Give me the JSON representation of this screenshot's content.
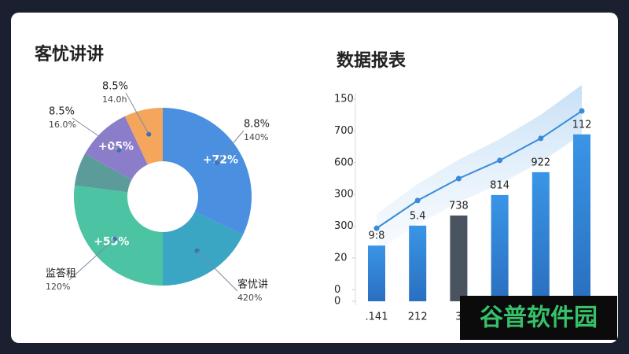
{
  "chart_data": [
    {
      "type": "pie",
      "title": "客忧讲讲",
      "donut": true,
      "values": [
        32,
        18,
        27,
        6,
        10,
        7
      ],
      "colors": [
        "#4a8fe0",
        "#3aa6c4",
        "#4cc3a2",
        "#5b9c9a",
        "#8b7dca",
        "#f4a65c"
      ],
      "inner_labels": [
        "+72%",
        null,
        "+55%",
        null,
        "+05%",
        null
      ],
      "outer_labels": [
        [
          "8.8%",
          "140%"
        ],
        [
          "客忧讲",
          "420%"
        ],
        [
          "监答租",
          "120%"
        ],
        null,
        [
          "8.5%",
          "16.0%"
        ],
        [
          "8.5%",
          "14.0h"
        ]
      ]
    },
    {
      "type": "bar_line",
      "title": "数据报表",
      "categories": [
        ".141",
        "212",
        "3",
        null,
        null,
        null
      ],
      "ylim": [
        0,
        700
      ],
      "yticks": [
        {
          "value": 700,
          "label": "150"
        },
        {
          "value": 590,
          "label": "700"
        },
        {
          "value": 480,
          "label": "600"
        },
        {
          "value": 370,
          "label": "300"
        },
        {
          "value": 260,
          "label": "300"
        },
        {
          "value": 150,
          "label": "20"
        },
        {
          "value": 40,
          "label": "0"
        },
        0
      ],
      "series": [
        {
          "type": "bar",
          "values": [
            193,
            262,
            297,
            368,
            447,
            578
          ],
          "colors": [
            "#2f86d6",
            "#2f86d6",
            "#4a5460",
            "#2f86d6",
            "#2f86d6",
            "#2f86d6"
          ],
          "bar_labels": [
            "9:8",
            "5.4",
            "738",
            "814",
            "922",
            "112"
          ]
        },
        {
          "type": "line",
          "values": [
            253,
            349,
            425,
            488,
            564,
            659
          ],
          "color": "#3a8ad8"
        }
      ]
    }
  ],
  "watermark": "谷普软件园"
}
